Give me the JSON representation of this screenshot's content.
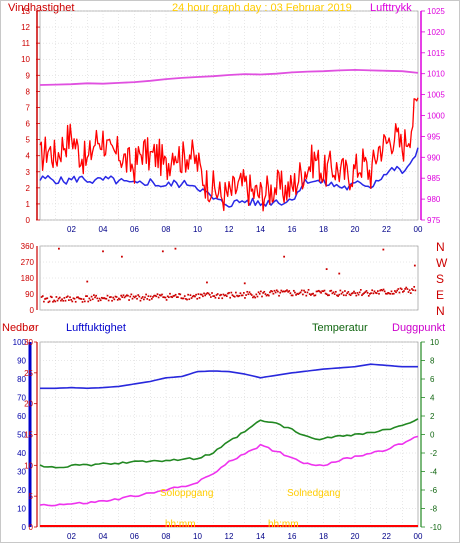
{
  "header": {
    "left_label": "Vindhastighet",
    "center_title": "24 hour graph day : 03 Februar 2019",
    "right_label": "Lufttrykk"
  },
  "lower_header": {
    "rain_label": "Nedbør",
    "humidity_label": "Luftfuktighet",
    "temperature_label": "Temperatur",
    "dewpoint_label": "Duggpunkt"
  },
  "annotations": {
    "sunrise_label": "Soloppgang",
    "sunset_label": "Solnedgang",
    "sunrise_time": "hh:mm",
    "sunset_time": "hh:mm"
  },
  "colors": {
    "wind_avg": "#2828e6",
    "wind_gust": "#ff0000",
    "pressure": "#e050e0",
    "direction": "#cc0000",
    "humidity": "#2828dc",
    "temperature": "#228822",
    "dewpoint": "#ee33ee",
    "rain": "#ff0000",
    "sun_text": "#ffcc00"
  },
  "chart_data": [
    {
      "type": "line",
      "panel": "wind_pressure",
      "x_ticks": [
        "02",
        "04",
        "06",
        "08",
        "10",
        "12",
        "14",
        "16",
        "18",
        "20",
        "22",
        "00"
      ],
      "x_range_hours": [
        0,
        24
      ],
      "y_left": {
        "ticks": [
          "0",
          "1",
          "2",
          "3",
          "4",
          "5",
          "6",
          "7",
          "8",
          "9",
          "10",
          "11",
          "12",
          "13"
        ],
        "range": [
          0,
          13
        ]
      },
      "y_right": {
        "ticks": [
          "975",
          "980",
          "985",
          "990",
          "995",
          "1000",
          "1005",
          "1010",
          "1015",
          "1020",
          "1025"
        ],
        "range": [
          975,
          1025
        ]
      },
      "series": [
        {
          "key": "wind_avg",
          "axis": "left",
          "x": [
            0,
            0.5,
            1,
            1.5,
            2,
            2.5,
            3,
            3.5,
            4,
            4.5,
            5,
            5.5,
            6,
            6.5,
            7,
            7.5,
            8,
            8.5,
            9,
            9.5,
            10,
            10.5,
            11,
            11.5,
            12,
            12.5,
            13,
            13.5,
            14,
            14.5,
            15,
            15.5,
            16,
            16.5,
            17,
            17.5,
            18,
            18.5,
            19,
            19.5,
            20,
            20.5,
            21,
            21.5,
            22,
            22.5,
            23,
            23.5,
            24
          ],
          "y": [
            2.5,
            2.6,
            2.5,
            2.4,
            2.5,
            2.6,
            2.5,
            2.4,
            2.5,
            2.5,
            2.4,
            2.3,
            2.2,
            2.3,
            2.4,
            2.2,
            2.1,
            2.3,
            2.2,
            2.3,
            2.1,
            1.7,
            1.3,
            1.1,
            1.0,
            1.1,
            1.2,
            1.1,
            1.0,
            1.1,
            1.2,
            1.1,
            1.3,
            2.0,
            2.5,
            2.4,
            2.3,
            2.2,
            2.1,
            2.0,
            2.2,
            2.3,
            2.1,
            2.6,
            2.9,
            3.2,
            3.0,
            3.3,
            4.5
          ]
        },
        {
          "key": "wind_gust",
          "axis": "left",
          "x": [
            0,
            0.5,
            1,
            1.5,
            2,
            2.5,
            3,
            3.5,
            4,
            4.5,
            5,
            5.5,
            6,
            6.5,
            7,
            7.5,
            8,
            8.5,
            9,
            9.5,
            10,
            10.5,
            11,
            11.5,
            12,
            12.5,
            13,
            13.5,
            14,
            14.5,
            15,
            15.5,
            16,
            16.5,
            17,
            17.5,
            18,
            18.5,
            19,
            19.5,
            20,
            20.5,
            21,
            21.5,
            22,
            22.5,
            23,
            23.5,
            24
          ],
          "y": [
            3.8,
            4.5,
            3.9,
            4.8,
            5.3,
            4.2,
            3.6,
            4.9,
            5.1,
            3.9,
            4.2,
            3.6,
            3.3,
            4.4,
            3.9,
            4.1,
            3.2,
            4.5,
            3.8,
            4.2,
            3.5,
            2.4,
            2.0,
            1.5,
            1.6,
            2.0,
            2.2,
            1.7,
            1.6,
            1.8,
            2.1,
            1.9,
            2.0,
            2.8,
            3.3,
            3.9,
            2.9,
            3.3,
            3.1,
            2.8,
            3.1,
            3.6,
            2.9,
            4.5,
            4.8,
            5.3,
            4.5,
            5.6,
            7.6
          ]
        },
        {
          "key": "pressure",
          "axis": "right",
          "x": [
            0,
            1,
            2,
            3,
            4,
            5,
            6,
            7,
            8,
            9,
            10,
            11,
            12,
            13,
            14,
            15,
            16,
            17,
            18,
            19,
            20,
            21,
            22,
            23,
            24
          ],
          "y": [
            1007.3,
            1007.4,
            1007.5,
            1007.7,
            1007.6,
            1007.8,
            1008.0,
            1008.3,
            1008.7,
            1009.0,
            1009.2,
            1009.4,
            1009.7,
            1009.9,
            1009.8,
            1010.0,
            1010.3,
            1010.5,
            1010.6,
            1010.8,
            1010.9,
            1010.8,
            1010.7,
            1010.6,
            1010.2
          ]
        }
      ]
    },
    {
      "type": "scatter",
      "panel": "wind_direction",
      "x_range_hours": [
        0,
        24
      ],
      "y_ticks": [
        "0",
        "90",
        "180",
        "270",
        "360"
      ],
      "y_range": [
        0,
        360
      ],
      "compass_labels": [
        "N",
        "W",
        "S",
        "E",
        "N"
      ],
      "baseline_x": [
        0,
        2,
        4,
        6,
        8,
        10,
        12,
        14,
        16,
        18,
        20,
        22,
        24
      ],
      "baseline_y": [
        60,
        62,
        66,
        70,
        76,
        78,
        82,
        90,
        95,
        96,
        98,
        100,
        115
      ],
      "outliers": [
        [
          1.2,
          345
        ],
        [
          4.0,
          330
        ],
        [
          5.2,
          300
        ],
        [
          7.8,
          330
        ],
        [
          8.6,
          345
        ],
        [
          15.5,
          300
        ],
        [
          18.2,
          230
        ],
        [
          19.0,
          205
        ],
        [
          21.8,
          340
        ],
        [
          23.8,
          250
        ],
        [
          3.0,
          160
        ],
        [
          10.6,
          155
        ],
        [
          13.0,
          150
        ]
      ]
    },
    {
      "type": "line",
      "panel": "temperature_humidity",
      "x_ticks": [
        "02",
        "04",
        "06",
        "08",
        "10",
        "12",
        "14",
        "16",
        "18",
        "20",
        "22",
        "00"
      ],
      "x_range_hours": [
        0,
        24
      ],
      "y_rain": {
        "ticks": [
          "0",
          "10",
          "20",
          "30",
          "40",
          "50",
          "60",
          "70",
          "80",
          "90",
          "100"
        ],
        "range": [
          0,
          100
        ]
      },
      "y_humidity": {
        "ticks": [
          "0",
          "5",
          "10",
          "15",
          "20",
          "25",
          "30"
        ],
        "range": [
          0,
          30
        ]
      },
      "y_temp": {
        "ticks": [
          "-10",
          "-8",
          "-6",
          "-4",
          "-2",
          "0",
          "2",
          "4",
          "6",
          "8",
          "10"
        ],
        "range": [
          -10,
          10
        ]
      },
      "series": [
        {
          "key": "humidity",
          "axis": "humidity",
          "x": [
            0,
            1,
            2,
            3,
            4,
            5,
            6,
            7,
            8,
            9,
            10,
            11,
            12,
            13,
            14,
            15,
            16,
            17,
            18,
            19,
            20,
            21,
            22,
            23,
            24
          ],
          "y": [
            22.5,
            22.5,
            22.6,
            22.5,
            22.6,
            22.8,
            23.2,
            23.6,
            24.2,
            24.4,
            25.2,
            25.3,
            25.2,
            24.8,
            24.2,
            24.6,
            25.0,
            25.3,
            25.6,
            25.8,
            26.0,
            26.4,
            26.2,
            26.0,
            26.0
          ]
        },
        {
          "key": "temperature",
          "axis": "temp",
          "x": [
            0,
            1,
            2,
            3,
            4,
            5,
            6,
            7,
            8,
            9,
            10,
            11,
            12,
            13,
            14,
            15,
            16,
            17,
            18,
            19,
            20,
            21,
            22,
            23,
            24
          ],
          "y": [
            -3.4,
            -3.5,
            -3.4,
            -3.3,
            -3.2,
            -3.1,
            -3.0,
            -2.8,
            -2.8,
            -2.7,
            -2.6,
            -2.0,
            -0.8,
            0.3,
            1.5,
            1.2,
            0.5,
            -0.3,
            -0.5,
            -0.1,
            0.0,
            0.2,
            0.5,
            0.9,
            1.7
          ]
        },
        {
          "key": "dewpoint",
          "axis": "temp",
          "x": [
            0,
            1,
            2,
            3,
            4,
            5,
            6,
            7,
            8,
            9,
            10,
            11,
            12,
            13,
            14,
            15,
            16,
            17,
            18,
            19,
            20,
            21,
            22,
            23,
            24
          ],
          "y": [
            -7.6,
            -7.6,
            -7.5,
            -7.4,
            -7.2,
            -7.0,
            -6.6,
            -6.4,
            -6.0,
            -5.6,
            -5.2,
            -4.2,
            -3.0,
            -2.0,
            -1.2,
            -1.8,
            -2.5,
            -3.2,
            -3.3,
            -2.8,
            -2.4,
            -2.0,
            -1.6,
            -1.0,
            -0.2
          ]
        },
        {
          "key": "rain",
          "axis": "rain",
          "x": [
            0,
            24
          ],
          "y": [
            0,
            0
          ]
        }
      ]
    }
  ]
}
